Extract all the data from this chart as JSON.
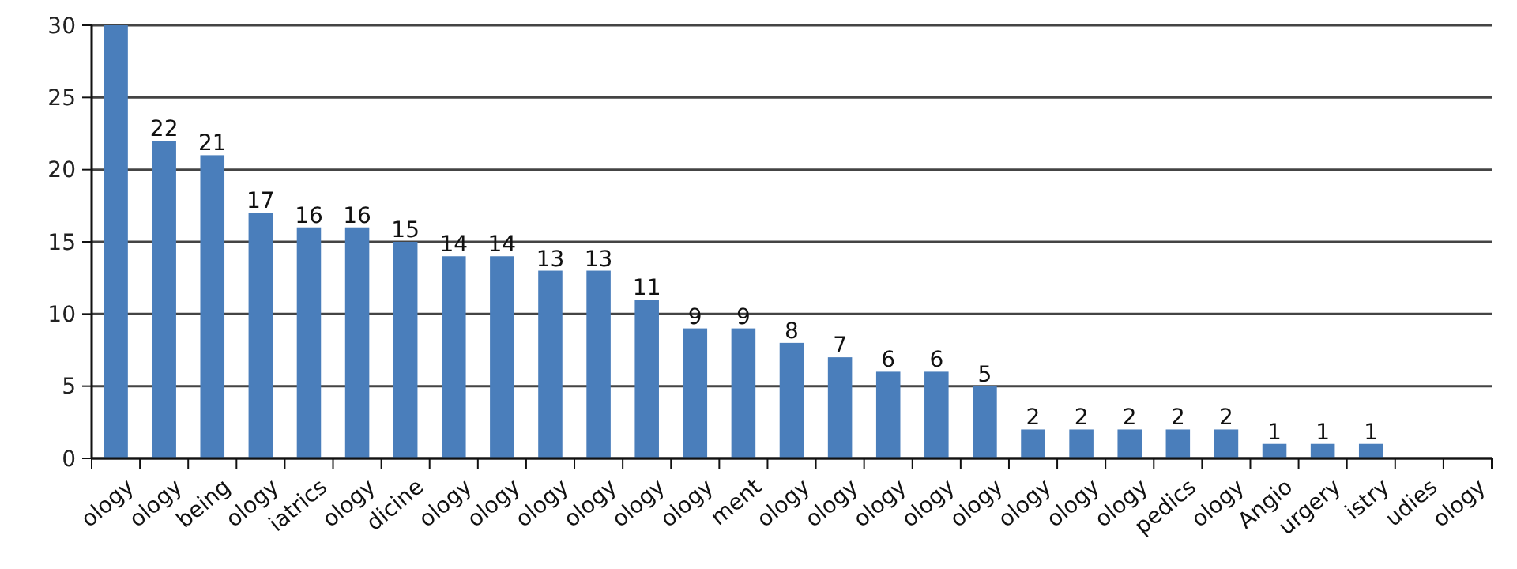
{
  "chart_data": {
    "type": "bar",
    "categories": [
      "ology",
      "ology",
      "being",
      "ology",
      "iatrics",
      "ology",
      "dicine",
      "ology",
      "ology",
      "ology",
      "ology",
      "ology",
      "ology",
      "ment",
      "ology",
      "ology",
      "ology",
      "ology",
      "ology",
      "ology",
      "ology",
      "ology",
      "pedics",
      "ology",
      "Angio",
      "urgery",
      "istry",
      "udies",
      "ology"
    ],
    "values": [
      30,
      22,
      21,
      17,
      16,
      16,
      15,
      14,
      14,
      13,
      13,
      11,
      9,
      9,
      8,
      7,
      6,
      6,
      5,
      2,
      2,
      2,
      2,
      2,
      1,
      1,
      1,
      0,
      0
    ],
    "value_labels": [
      null,
      "22",
      "21",
      "17",
      "16",
      "16",
      "15",
      "14",
      "14",
      "13",
      "13",
      "11",
      "9",
      "9",
      "8",
      "7",
      "6",
      "6",
      "5",
      "2",
      "2",
      "2",
      "2",
      "2",
      "1",
      "1",
      "1",
      null,
      null
    ],
    "color": "#4a7ebb",
    "ylim": [
      0,
      30
    ],
    "yticks": [
      0,
      5,
      10,
      15,
      20,
      25,
      30
    ],
    "grid": "y"
  }
}
